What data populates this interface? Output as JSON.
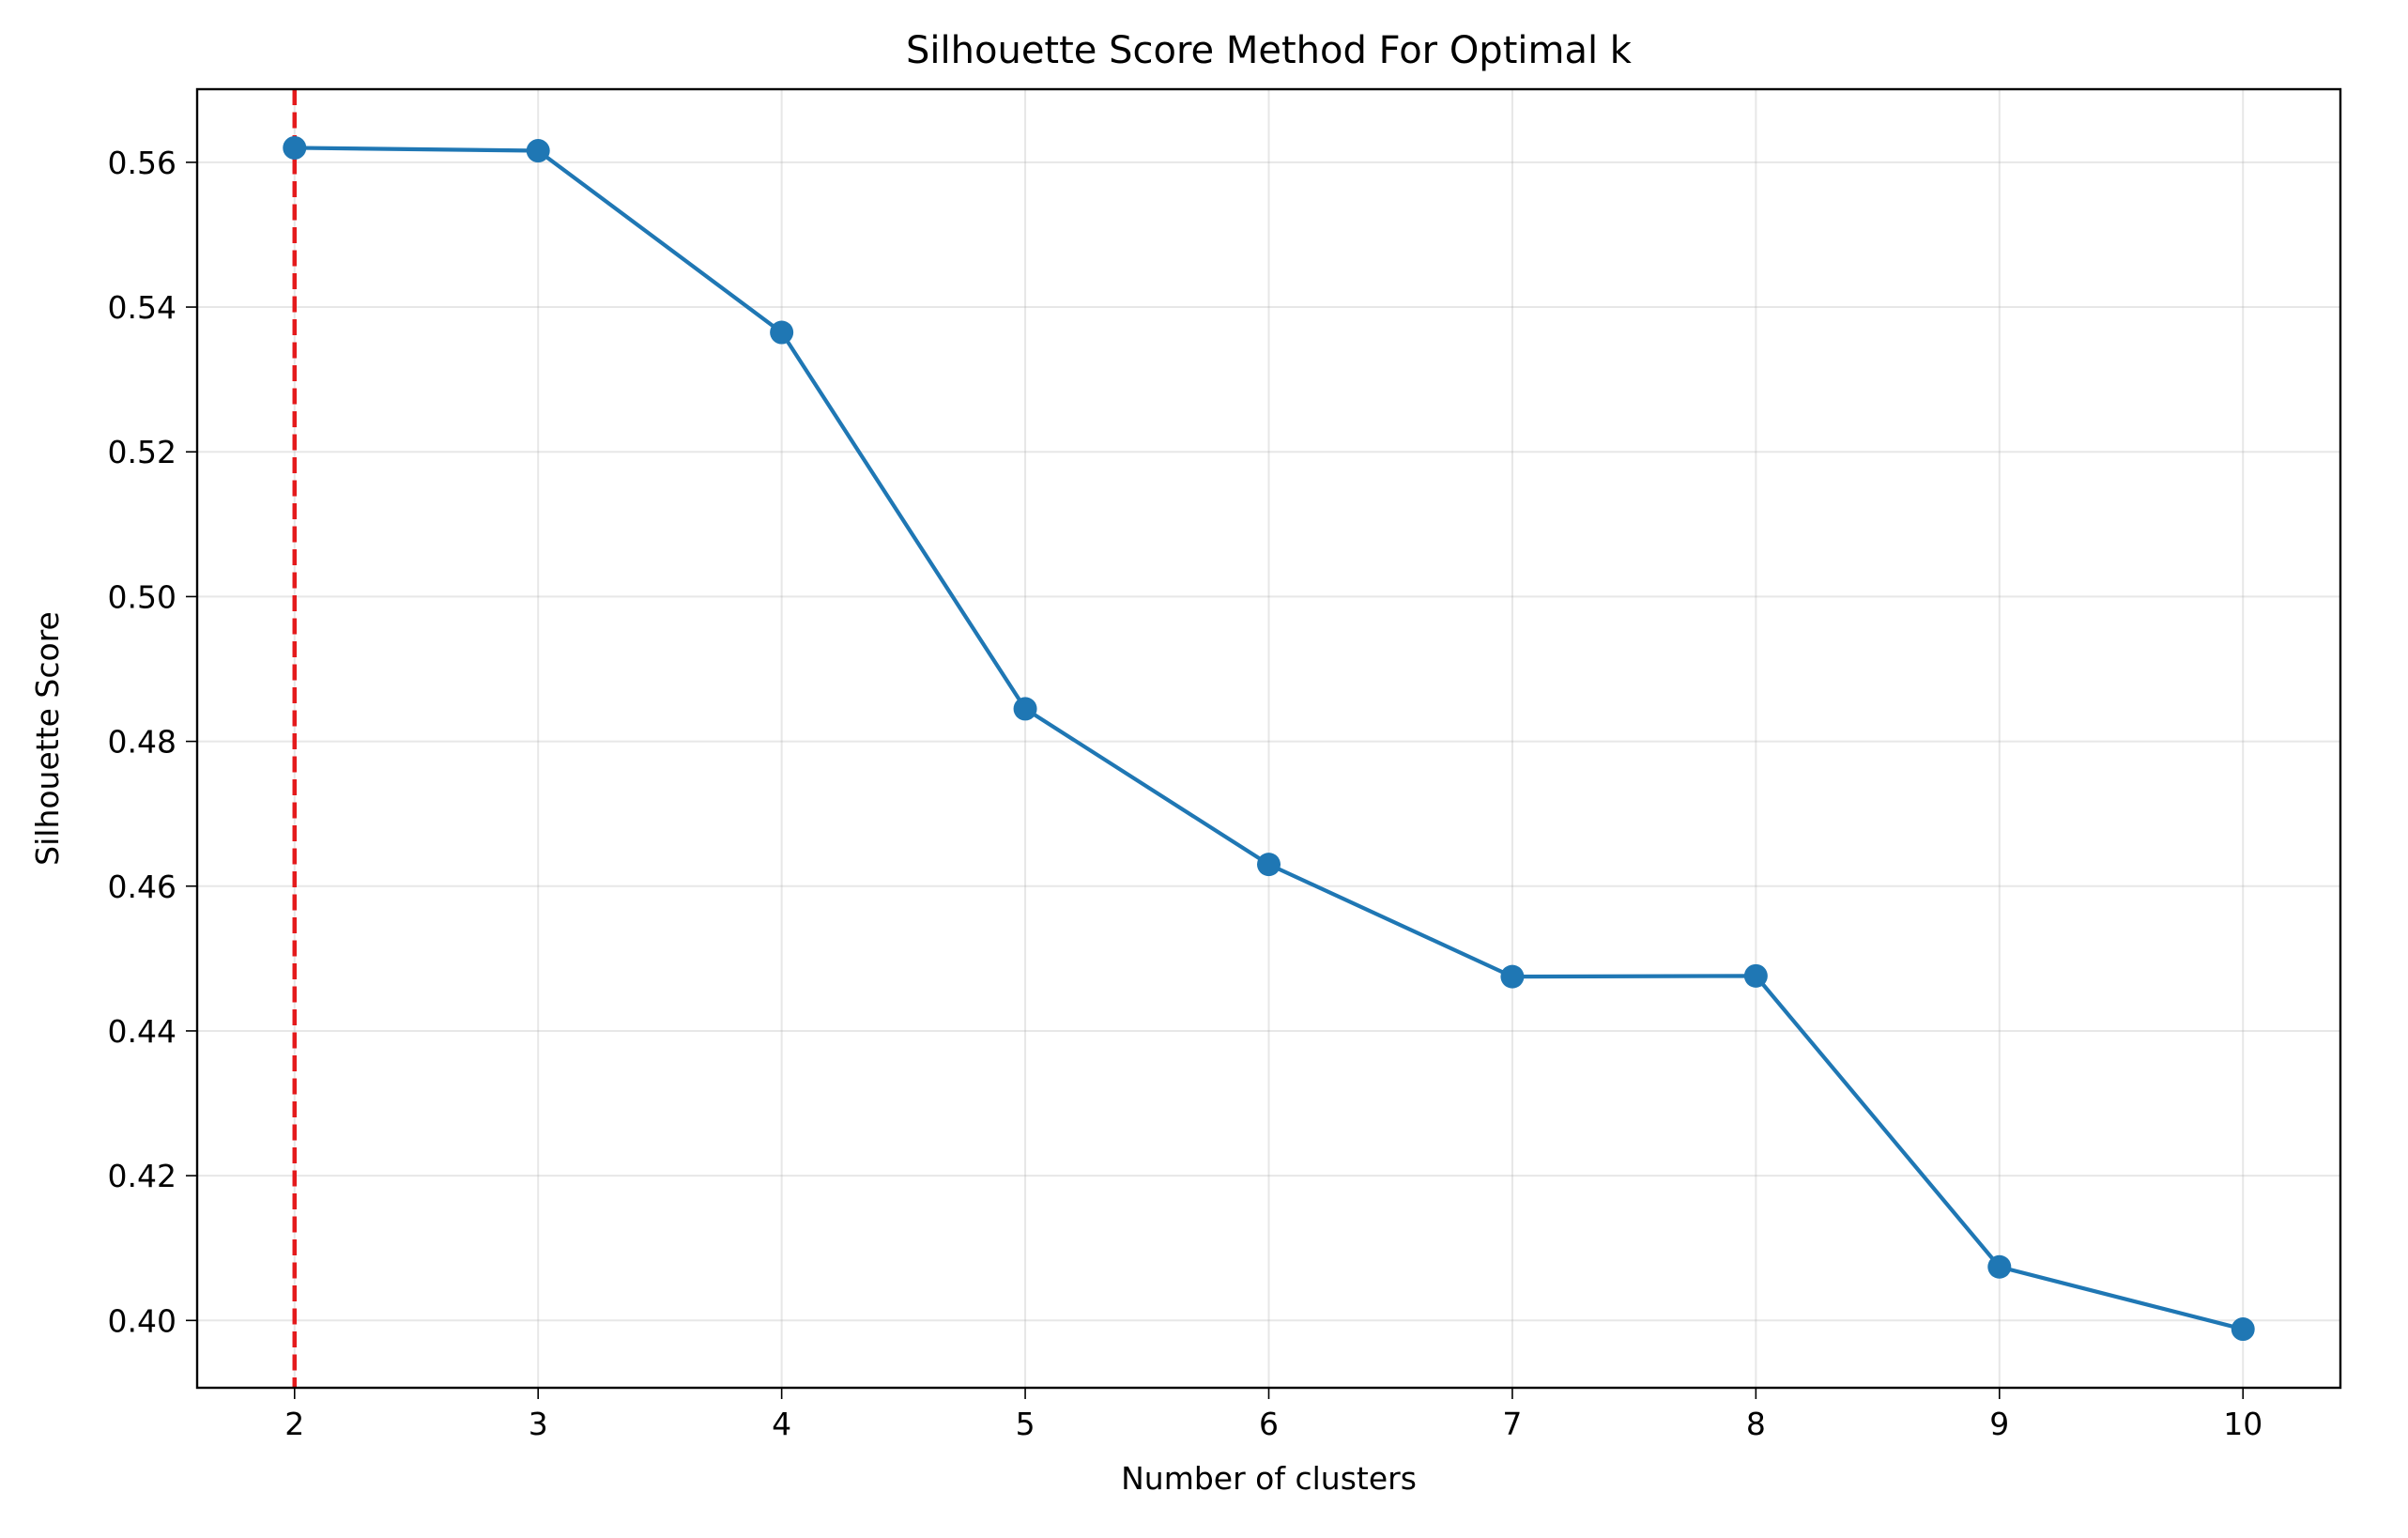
{
  "chart_data": {
    "type": "line",
    "title": "Silhouette Score Method For Optimal k",
    "xlabel": "Number of clusters",
    "ylabel": "Silhouette Score",
    "x": [
      2,
      3,
      4,
      5,
      6,
      7,
      8,
      9,
      10
    ],
    "series": [
      {
        "values": [
          0.562,
          0.5616,
          0.5365,
          0.4845,
          0.463,
          0.4475,
          0.4476,
          0.4074,
          0.3988
        ],
        "color": "#1f77b4",
        "marker": "circle"
      }
    ],
    "xlim": [
      1.6,
      10.4
    ],
    "ylim": [
      0.3907,
      0.5701
    ],
    "xticks": [
      2,
      3,
      4,
      5,
      6,
      7,
      8,
      9,
      10
    ],
    "xtick_labels": [
      "2",
      "3",
      "4",
      "5",
      "6",
      "7",
      "8",
      "9",
      "10"
    ],
    "yticks": [
      0.4,
      0.42,
      0.44,
      0.46,
      0.48,
      0.5,
      0.52,
      0.54,
      0.56
    ],
    "ytick_labels": [
      "0.40",
      "0.42",
      "0.44",
      "0.46",
      "0.48",
      "0.50",
      "0.52",
      "0.54",
      "0.56"
    ],
    "grid": true,
    "reference_line": {
      "orientation": "vertical",
      "x": 2,
      "style": "dashed",
      "color": "#e41a1c"
    }
  }
}
